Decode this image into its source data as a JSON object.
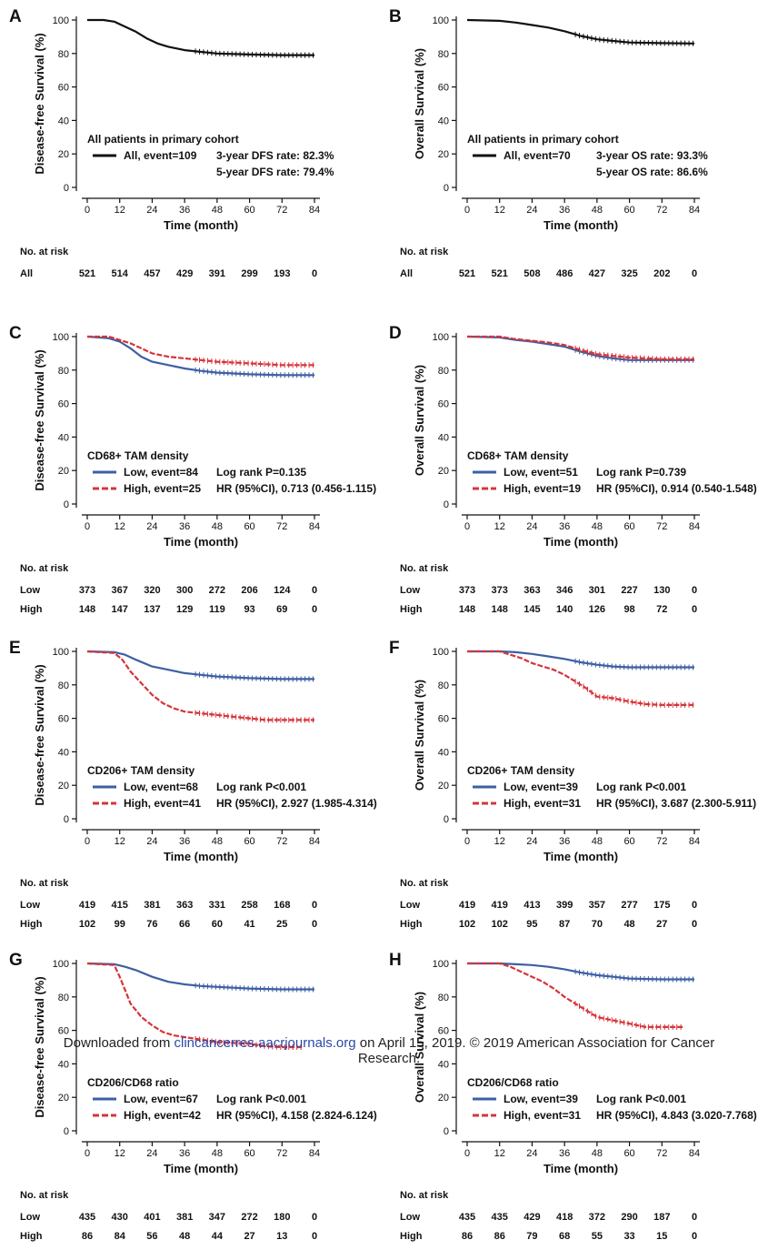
{
  "colors": {
    "all": "#111111",
    "low": "#3d5fa3",
    "high": "#d6343a",
    "axis": "#111111"
  },
  "common": {
    "xlabel": "Time (month)",
    "xticks": [
      0,
      12,
      24,
      36,
      48,
      60,
      72,
      84
    ],
    "yticks": [
      0,
      20,
      40,
      60,
      80,
      100
    ],
    "risk_title": "No. at risk",
    "risk_times": [
      0,
      12,
      24,
      36,
      48,
      60,
      72,
      84
    ]
  },
  "footer": {
    "prefix": "Downloaded from ",
    "link": "clincancerres.aacrjournals.org",
    "suffix": " on April 15, 2019. © 2019 American Association for Cancer",
    "line2": "Research."
  },
  "chart_data": [
    {
      "type": "line",
      "panel": "A",
      "ylabel": "Disease-free Survival (%)",
      "xlabel": "Time (month)",
      "xlim": [
        0,
        84
      ],
      "ylim": [
        0,
        100
      ],
      "legend_title": "All patients in primary cohort",
      "series": [
        {
          "name": "All, event=109",
          "key": "all",
          "x": [
            0,
            6,
            10,
            14,
            18,
            22,
            26,
            30,
            36,
            42,
            48,
            60,
            72,
            84
          ],
          "y": [
            100,
            100,
            99,
            96,
            93,
            89,
            86,
            84,
            82,
            81,
            80,
            79.4,
            79,
            79
          ]
        }
      ],
      "annotations": [
        "3-year DFS rate: 82.3%",
        "5-year DFS rate: 79.4%"
      ],
      "risk": [
        {
          "label": "All",
          "values": [
            521,
            514,
            457,
            429,
            391,
            299,
            193,
            0
          ]
        }
      ]
    },
    {
      "type": "line",
      "panel": "B",
      "ylabel": "Overall Survival (%)",
      "xlabel": "Time (month)",
      "xlim": [
        0,
        84
      ],
      "ylim": [
        0,
        100
      ],
      "legend_title": "All patients in primary cohort",
      "series": [
        {
          "name": "All, event=70",
          "key": "all",
          "x": [
            0,
            12,
            18,
            24,
            30,
            36,
            42,
            48,
            54,
            60,
            72,
            84
          ],
          "y": [
            100,
            99.5,
            98.5,
            97,
            95.5,
            93.3,
            90.5,
            88.5,
            87.5,
            86.6,
            86.2,
            86
          ]
        }
      ],
      "annotations": [
        "3-year OS rate: 93.3%",
        "5-year OS rate: 86.6%"
      ],
      "risk": [
        {
          "label": "All",
          "values": [
            521,
            521,
            508,
            486,
            427,
            325,
            202,
            0
          ]
        }
      ]
    },
    {
      "type": "line",
      "panel": "C",
      "ylabel": "Disease-free Survival (%)",
      "xlabel": "Time (month)",
      "xlim": [
        0,
        84
      ],
      "ylim": [
        0,
        100
      ],
      "legend_title": "CD68+ TAM density",
      "series": [
        {
          "name": "Low, event=84",
          "key": "low",
          "x": [
            0,
            8,
            12,
            16,
            20,
            24,
            30,
            36,
            42,
            48,
            60,
            72,
            84
          ],
          "y": [
            100,
            99,
            97,
            93,
            88,
            85,
            83,
            81,
            79.5,
            78.5,
            77.5,
            77,
            77
          ]
        },
        {
          "name": "High, event=25",
          "key": "high",
          "x": [
            0,
            8,
            12,
            16,
            20,
            24,
            30,
            36,
            42,
            48,
            60,
            72,
            84
          ],
          "y": [
            100,
            100,
            98,
            96,
            93,
            90,
            88,
            87,
            86,
            85,
            84,
            83,
            83
          ]
        }
      ],
      "annotations": [
        "Log rank P=0.135",
        "HR (95%CI), 0.713 (0.456-1.115)"
      ],
      "risk": [
        {
          "label": "Low",
          "values": [
            373,
            367,
            320,
            300,
            272,
            206,
            124,
            0
          ]
        },
        {
          "label": "High",
          "values": [
            148,
            147,
            137,
            129,
            119,
            93,
            69,
            0
          ]
        }
      ]
    },
    {
      "type": "line",
      "panel": "D",
      "ylabel": "Overall Survival (%)",
      "xlabel": "Time (month)",
      "xlim": [
        0,
        84
      ],
      "ylim": [
        0,
        100
      ],
      "legend_title": "CD68+ TAM density",
      "series": [
        {
          "name": "Low, event=51",
          "key": "low",
          "x": [
            0,
            12,
            18,
            24,
            30,
            36,
            42,
            48,
            54,
            60,
            72,
            84
          ],
          "y": [
            100,
            99.5,
            98,
            97,
            95.5,
            94,
            91,
            88.5,
            87,
            86,
            86,
            86
          ]
        },
        {
          "name": "High, event=19",
          "key": "high",
          "x": [
            0,
            12,
            18,
            24,
            30,
            36,
            42,
            48,
            54,
            60,
            72,
            84
          ],
          "y": [
            100,
            100,
            98.5,
            97.5,
            96.5,
            95,
            92,
            89.5,
            88.5,
            87.5,
            86.5,
            86.5
          ]
        }
      ],
      "annotations": [
        "Log rank P=0.739",
        "HR (95%CI), 0.914 (0.540-1.548)"
      ],
      "risk": [
        {
          "label": "Low",
          "values": [
            373,
            373,
            363,
            346,
            301,
            227,
            130,
            0
          ]
        },
        {
          "label": "High",
          "values": [
            148,
            148,
            145,
            140,
            126,
            98,
            72,
            0
          ]
        }
      ]
    },
    {
      "type": "line",
      "panel": "E",
      "ylabel": "Disease-free Survival (%)",
      "xlabel": "Time (month)",
      "xlim": [
        0,
        84
      ],
      "ylim": [
        0,
        100
      ],
      "legend_title": "CD206+ TAM density",
      "series": [
        {
          "name": "Low, event=68",
          "key": "low",
          "x": [
            0,
            10,
            14,
            18,
            24,
            30,
            36,
            42,
            48,
            60,
            72,
            84
          ],
          "y": [
            100,
            99.5,
            98,
            95,
            91,
            89,
            87,
            86,
            85,
            84,
            83.5,
            83.5
          ]
        },
        {
          "name": "High, event=41",
          "key": "high",
          "x": [
            0,
            10,
            13,
            16,
            20,
            24,
            28,
            32,
            36,
            42,
            48,
            54,
            60,
            66,
            72,
            84
          ],
          "y": [
            100,
            99,
            95,
            88,
            81,
            74,
            69,
            66,
            64,
            63,
            62,
            61,
            60,
            59,
            59,
            59
          ]
        }
      ],
      "annotations": [
        "Log rank P<0.001",
        "HR (95%CI), 2.927 (1.985-4.314)"
      ],
      "risk": [
        {
          "label": "Low",
          "values": [
            419,
            415,
            381,
            363,
            331,
            258,
            168,
            0
          ]
        },
        {
          "label": "High",
          "values": [
            102,
            99,
            76,
            66,
            60,
            41,
            25,
            0
          ]
        }
      ]
    },
    {
      "type": "line",
      "panel": "F",
      "ylabel": "Overall Survival (%)",
      "xlabel": "Time (month)",
      "xlim": [
        0,
        84
      ],
      "ylim": [
        0,
        100
      ],
      "legend_title": "CD206+ TAM density",
      "series": [
        {
          "name": "Low, event=39",
          "key": "low",
          "x": [
            0,
            12,
            18,
            24,
            30,
            36,
            42,
            48,
            54,
            60,
            72,
            84
          ],
          "y": [
            100,
            100,
            99.5,
            98.5,
            97,
            95.5,
            93.5,
            92,
            91,
            90.5,
            90.5,
            90.5
          ]
        },
        {
          "name": "High, event=31",
          "key": "high",
          "x": [
            0,
            12,
            16,
            20,
            24,
            28,
            32,
            36,
            40,
            44,
            48,
            54,
            60,
            66,
            72,
            84
          ],
          "y": [
            100,
            100,
            98,
            96,
            93,
            91,
            89,
            86,
            82,
            78,
            73,
            72,
            70,
            68.5,
            68,
            68
          ]
        }
      ],
      "annotations": [
        "Log rank P<0.001",
        "HR (95%CI), 3.687 (2.300-5.911)"
      ],
      "risk": [
        {
          "label": "Low",
          "values": [
            419,
            419,
            413,
            399,
            357,
            277,
            175,
            0
          ]
        },
        {
          "label": "High",
          "values": [
            102,
            102,
            95,
            87,
            70,
            48,
            27,
            0
          ]
        }
      ]
    },
    {
      "type": "line",
      "panel": "G",
      "ylabel": "Disease-free Survival (%)",
      "xlabel": "Time (month)",
      "xlim": [
        0,
        84
      ],
      "ylim": [
        0,
        100
      ],
      "legend_title": "CD206/CD68 ratio",
      "series": [
        {
          "name": "Low, event=67",
          "key": "low",
          "x": [
            0,
            10,
            14,
            18,
            24,
            30,
            36,
            42,
            48,
            60,
            72,
            84
          ],
          "y": [
            100,
            99.5,
            98,
            96,
            92,
            89,
            87.5,
            86.5,
            86,
            85,
            84.5,
            84.5
          ]
        },
        {
          "name": "High, event=42",
          "key": "high",
          "x": [
            0,
            10,
            12,
            14,
            16,
            18,
            20,
            24,
            28,
            32,
            36,
            42,
            48,
            54,
            60,
            66,
            72,
            80
          ],
          "y": [
            100,
            99,
            92,
            84,
            76,
            72,
            68,
            63,
            59,
            57,
            56,
            54.5,
            53,
            52.5,
            52,
            50.5,
            50,
            50
          ]
        }
      ],
      "annotations": [
        "Log rank P<0.001",
        "HR (95%CI), 4.158 (2.824-6.124)"
      ],
      "risk": [
        {
          "label": "Low",
          "values": [
            435,
            430,
            401,
            381,
            347,
            272,
            180,
            0
          ]
        },
        {
          "label": "High",
          "values": [
            86,
            84,
            56,
            48,
            44,
            27,
            13,
            0
          ]
        }
      ]
    },
    {
      "type": "line",
      "panel": "H",
      "ylabel": "Overall Survival (%)",
      "xlabel": "Time (month)",
      "xlim": [
        0,
        84
      ],
      "ylim": [
        0,
        100
      ],
      "legend_title": "CD206/CD68 ratio",
      "series": [
        {
          "name": "Low, event=39",
          "key": "low",
          "x": [
            0,
            12,
            18,
            24,
            30,
            36,
            42,
            48,
            54,
            60,
            72,
            84
          ],
          "y": [
            100,
            100,
            99.5,
            99,
            98,
            96.5,
            94.5,
            93,
            92,
            91,
            90.5,
            90.5
          ]
        },
        {
          "name": "High, event=31",
          "key": "high",
          "x": [
            0,
            12,
            16,
            20,
            24,
            28,
            32,
            36,
            40,
            44,
            48,
            54,
            60,
            66,
            72,
            80
          ],
          "y": [
            100,
            100,
            98,
            95,
            92,
            89,
            85,
            80,
            76,
            72,
            68,
            66,
            64,
            62,
            62,
            62
          ]
        }
      ],
      "annotations": [
        "Log rank P<0.001",
        "HR (95%CI), 4.843 (3.020-7.768)"
      ],
      "risk": [
        {
          "label": "Low",
          "values": [
            435,
            435,
            429,
            418,
            372,
            290,
            187,
            0
          ]
        },
        {
          "label": "High",
          "values": [
            86,
            86,
            79,
            68,
            55,
            33,
            15,
            0
          ]
        }
      ]
    }
  ]
}
